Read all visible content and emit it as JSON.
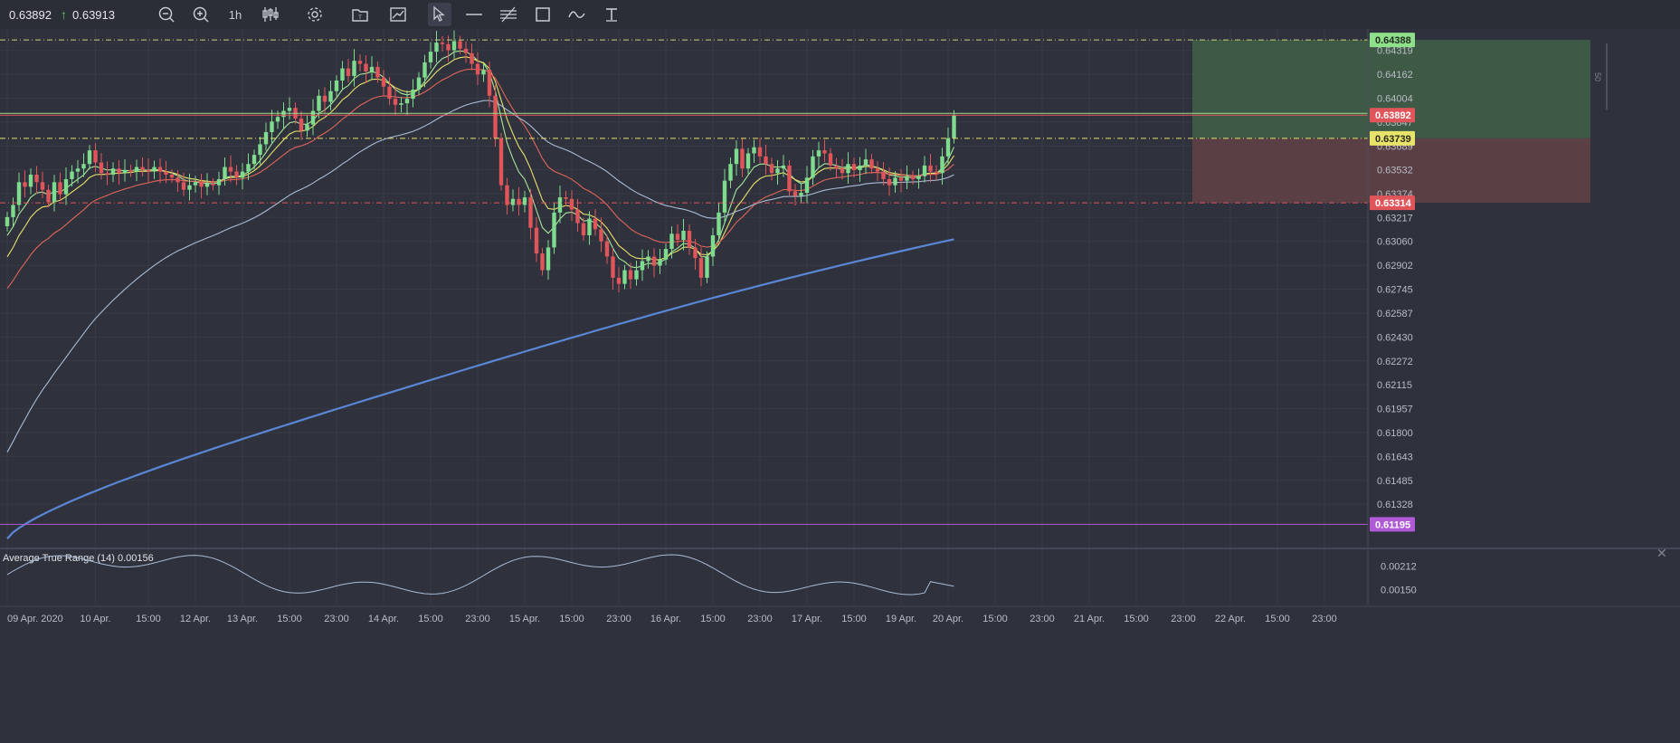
{
  "toolbar": {
    "bid": "0.63892",
    "ask": "0.63913",
    "timeframe": "1h",
    "icons": [
      "zoom-out-icon",
      "zoom-in-icon",
      "candles-icon",
      "gear-icon",
      "template-icon",
      "chart-image-icon",
      "cursor-icon",
      "horizontal-line-icon",
      "parallel-lines-icon",
      "rectangle-icon",
      "wave-icon",
      "text-tool-icon"
    ]
  },
  "colors": {
    "background": "#2f313c",
    "bull": "#7fdc8f",
    "bear": "#e0555a",
    "ema_fast": "#a6e89a",
    "ema_mid": "#e8e36a",
    "ema_slow": "#e0665a",
    "sma_100": "#a9bcd6",
    "sma_200": "#5a86d6",
    "level_purple": "#b05ad8",
    "take_profit_zone": "#3e5a46",
    "stop_loss_zone": "#5a3f45"
  },
  "price_axis": {
    "labels": [
      "0.64319",
      "0.64162",
      "0.64004",
      "0.63847",
      "0.63689",
      "0.63532",
      "0.63374",
      "0.63217",
      "0.63060",
      "0.62902",
      "0.62745",
      "0.62587",
      "0.62430",
      "0.62272",
      "0.62115",
      "0.61957",
      "0.61800",
      "0.61643",
      "0.61485",
      "0.61328"
    ],
    "min": 0.6106,
    "max": 0.6446
  },
  "badges": {
    "take_profit": "0.64388",
    "current": "0.63892",
    "entry": "0.63739",
    "stop_loss": "0.63314",
    "level": "0.61195"
  },
  "levels": {
    "take_profit": 0.64388,
    "current": 0.63892,
    "entry": 0.63739,
    "stop_loss": 0.63314,
    "level": 0.61195
  },
  "position_tool_label": "50",
  "time_axis": {
    "labels": [
      {
        "text": "09 Apr. 2020",
        "bar": 0
      },
      {
        "text": "10 Apr.",
        "bar": 15
      },
      {
        "text": "15:00",
        "bar": 24
      },
      {
        "text": "12 Apr.",
        "bar": 32
      },
      {
        "text": "13 Apr.",
        "bar": 40
      },
      {
        "text": "15:00",
        "bar": 48
      },
      {
        "text": "23:00",
        "bar": 56
      },
      {
        "text": "14 Apr.",
        "bar": 64
      },
      {
        "text": "15:00",
        "bar": 72
      },
      {
        "text": "23:00",
        "bar": 80
      },
      {
        "text": "15 Apr.",
        "bar": 88
      },
      {
        "text": "15:00",
        "bar": 96
      },
      {
        "text": "23:00",
        "bar": 104
      },
      {
        "text": "16 Apr.",
        "bar": 112
      },
      {
        "text": "15:00",
        "bar": 120
      },
      {
        "text": "23:00",
        "bar": 128
      },
      {
        "text": "17 Apr.",
        "bar": 136
      },
      {
        "text": "15:00",
        "bar": 144
      },
      {
        "text": "19 Apr.",
        "bar": 152
      },
      {
        "text": "20 Apr.",
        "bar": 160
      },
      {
        "text": "15:00",
        "bar": 168
      },
      {
        "text": "23:00",
        "bar": 176
      },
      {
        "text": "21 Apr.",
        "bar": 184
      },
      {
        "text": "15:00",
        "bar": 192
      },
      {
        "text": "23:00",
        "bar": 200
      },
      {
        "text": "22 Apr.",
        "bar": 208
      },
      {
        "text": "15:00",
        "bar": 216
      },
      {
        "text": "23:00",
        "bar": 224
      }
    ]
  },
  "indicator": {
    "title": "Average True Range (14) 0.00156",
    "axis_labels": [
      "0.00212",
      "0.00150"
    ],
    "axis_values": [
      0.00212,
      0.0015
    ],
    "min": 0.0011,
    "max": 0.0025
  },
  "chart_data": {
    "type": "candlestick",
    "symbol_timeframe": "1h",
    "closes": [
      0.6322,
      0.633,
      0.6345,
      0.6342,
      0.635,
      0.6345,
      0.634,
      0.6332,
      0.6345,
      0.6337,
      0.6347,
      0.6352,
      0.6354,
      0.6357,
      0.6366,
      0.6358,
      0.6351,
      0.635,
      0.6354,
      0.6351,
      0.6353,
      0.6352,
      0.6355,
      0.6353,
      0.6352,
      0.6355,
      0.6352,
      0.635,
      0.6348,
      0.6345,
      0.634,
      0.6343,
      0.6345,
      0.6342,
      0.6344,
      0.6343,
      0.6347,
      0.6355,
      0.6352,
      0.6348,
      0.6352,
      0.6357,
      0.6363,
      0.637,
      0.6378,
      0.6385,
      0.6388,
      0.6392,
      0.6394,
      0.6387,
      0.6379,
      0.6383,
      0.6392,
      0.6402,
      0.6398,
      0.6405,
      0.6412,
      0.642,
      0.6415,
      0.6425,
      0.6423,
      0.6418,
      0.6421,
      0.6414,
      0.6408,
      0.64,
      0.6396,
      0.6397,
      0.64,
      0.6406,
      0.6414,
      0.6424,
      0.6431,
      0.6437,
      0.6436,
      0.6432,
      0.6438,
      0.6433,
      0.643,
      0.6423,
      0.6416,
      0.6419,
      0.6402,
      0.6374,
      0.6343,
      0.633,
      0.6334,
      0.633,
      0.6335,
      0.6315,
      0.6298,
      0.6287,
      0.6302,
      0.6325,
      0.6335,
      0.6334,
      0.6327,
      0.6318,
      0.631,
      0.6321,
      0.6314,
      0.6306,
      0.6296,
      0.6282,
      0.6278,
      0.6287,
      0.6281,
      0.6287,
      0.6293,
      0.6296,
      0.629,
      0.6294,
      0.6301,
      0.6311,
      0.6307,
      0.6313,
      0.6302,
      0.6295,
      0.6282,
      0.6296,
      0.631,
      0.6325,
      0.6346,
      0.6357,
      0.6367,
      0.6354,
      0.6364,
      0.6368,
      0.6362,
      0.6357,
      0.6351,
      0.6354,
      0.6356,
      0.6339,
      0.6336,
      0.6338,
      0.6348,
      0.6362,
      0.6366,
      0.6364,
      0.6356,
      0.6354,
      0.6351,
      0.6357,
      0.6353,
      0.6356,
      0.636,
      0.6354,
      0.6352,
      0.6347,
      0.6343,
      0.6348,
      0.6346,
      0.6349,
      0.6347,
      0.6349,
      0.6356,
      0.6352,
      0.6351,
      0.6362,
      0.6374,
      0.6389
    ],
    "ema_fast_end": 0.636,
    "ema_mid_end": 0.6355,
    "ema_slow_end": 0.6351,
    "sma_100_end": 0.6343,
    "sma_200_end": 0.6305,
    "atr_end": 0.00156
  }
}
